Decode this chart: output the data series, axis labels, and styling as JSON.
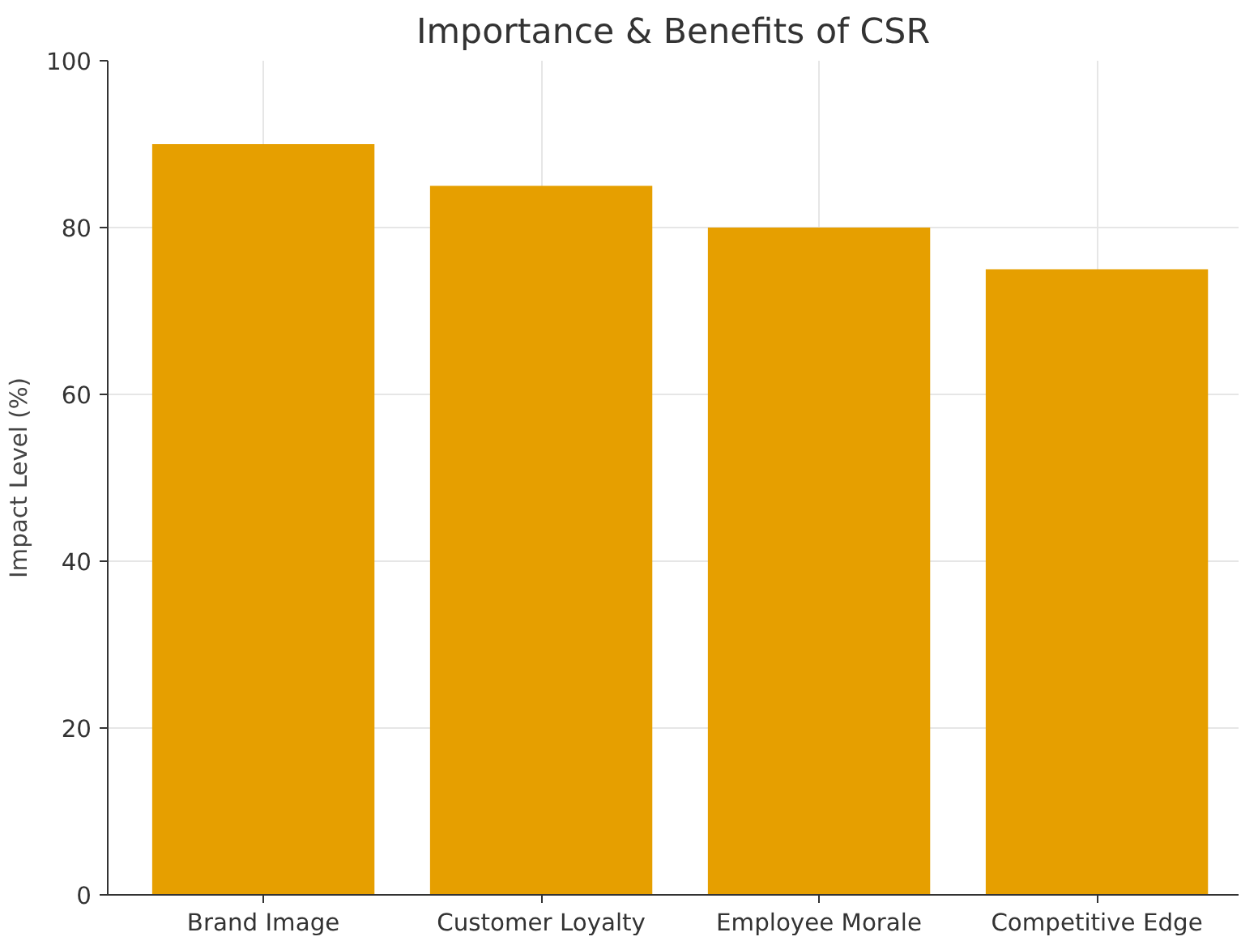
{
  "chart_data": {
    "type": "bar",
    "title": "Importance & Benefits of CSR",
    "ylabel": "Impact Level (%)",
    "categories": [
      "Brand Image",
      "Customer Loyalty",
      "Employee Morale",
      "Competitive Edge"
    ],
    "values": [
      90,
      85,
      80,
      75
    ],
    "color": "#e69f00",
    "ylim": [
      0,
      100
    ],
    "yticks": [
      0,
      20,
      40,
      60,
      80,
      100
    ],
    "grid": true
  }
}
